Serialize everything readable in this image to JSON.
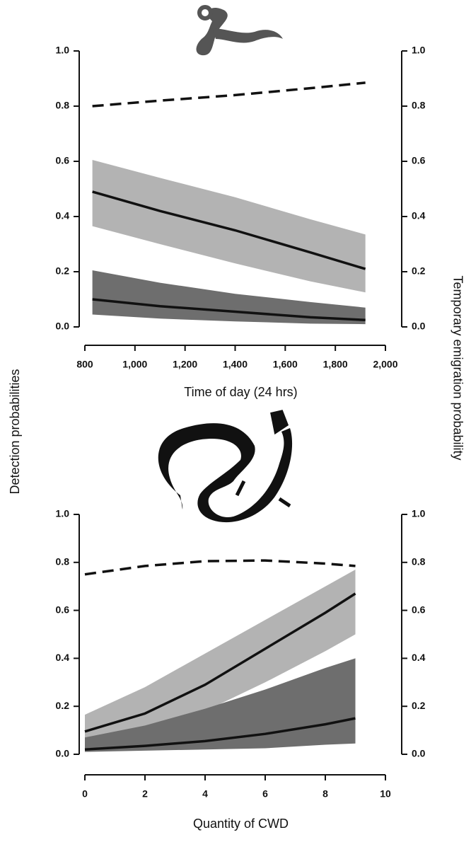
{
  "y_label": "Detection probabilities",
  "y2_label": "Temporary emigration probability",
  "chart_data": [
    {
      "type": "line",
      "x_label": "Time of day (24 hrs)",
      "x": [
        830,
        1100,
        1400,
        1700,
        1920
      ],
      "xlim": [
        800,
        2000
      ],
      "xticks": [
        800,
        {
          "value": 1000,
          "label": "1,000"
        },
        {
          "value": 1200,
          "label": "1,200"
        },
        {
          "value": 1400,
          "label": "1,400"
        },
        {
          "value": 1600,
          "label": "1,600"
        },
        {
          "value": 1800,
          "label": "1,800"
        },
        {
          "value": 2000,
          "label": "2,000"
        }
      ],
      "ylim": [
        0,
        1
      ],
      "yticks": [
        {
          "value": 0,
          "label": "0.0"
        },
        0.2,
        0.4,
        0.6,
        0.8,
        {
          "value": 1,
          "label": "1.0"
        }
      ],
      "y2lim": [
        0,
        1
      ],
      "y2ticks": [
        {
          "value": 0,
          "label": "0.0"
        },
        0.2,
        0.4,
        0.6,
        0.8,
        {
          "value": 1,
          "label": "1.0"
        }
      ],
      "bands": [
        {
          "color": "#b3b3b3",
          "lower": [
            0.365,
            0.3,
            0.23,
            0.165,
            0.125
          ],
          "upper": [
            0.605,
            0.54,
            0.47,
            0.39,
            0.335
          ]
        },
        {
          "color": "#6e6e6e",
          "lower": [
            0.045,
            0.03,
            0.02,
            0.012,
            0.01
          ],
          "upper": [
            0.205,
            0.16,
            0.12,
            0.09,
            0.07
          ]
        }
      ],
      "series": [
        {
          "color": "#111111",
          "values": [
            0.49,
            0.42,
            0.35,
            0.27,
            0.21
          ]
        },
        {
          "color": "#111111",
          "values": [
            0.1,
            0.075,
            0.055,
            0.035,
            0.025
          ]
        },
        {
          "color": "#111111",
          "dashed": true,
          "axis": "y2",
          "values": [
            0.8,
            0.82,
            0.84,
            0.865,
            0.885
          ]
        }
      ]
    },
    {
      "type": "line",
      "x_label": "Quantity of CWD",
      "x": [
        0,
        2,
        4,
        6,
        8,
        9
      ],
      "xlim": [
        0,
        10
      ],
      "xticks": [
        0,
        2,
        4,
        6,
        8,
        10
      ],
      "ylim": [
        0,
        1
      ],
      "yticks": [
        {
          "value": 0,
          "label": "0.0"
        },
        0.2,
        0.4,
        0.6,
        0.8,
        {
          "value": 1,
          "label": "1.0"
        }
      ],
      "y2lim": [
        0,
        1
      ],
      "y2ticks": [
        {
          "value": 0,
          "label": "0.0"
        },
        0.2,
        0.4,
        0.6,
        0.8,
        {
          "value": 1,
          "label": "1.0"
        }
      ],
      "bands": [
        {
          "color": "#b3b3b3",
          "lower": [
            0.06,
            0.1,
            0.18,
            0.3,
            0.43,
            0.5
          ],
          "upper": [
            0.165,
            0.28,
            0.42,
            0.56,
            0.7,
            0.77
          ]
        },
        {
          "color": "#6e6e6e",
          "lower": [
            0.01,
            0.015,
            0.02,
            0.025,
            0.04,
            0.045
          ],
          "upper": [
            0.07,
            0.12,
            0.19,
            0.27,
            0.36,
            0.4
          ]
        }
      ],
      "series": [
        {
          "color": "#111111",
          "values": [
            0.095,
            0.17,
            0.29,
            0.44,
            0.59,
            0.67
          ]
        },
        {
          "color": "#111111",
          "values": [
            0.02,
            0.035,
            0.055,
            0.085,
            0.125,
            0.15
          ]
        },
        {
          "color": "#111111",
          "dashed": true,
          "axis": "y2",
          "values": [
            0.75,
            0.785,
            0.805,
            0.808,
            0.795,
            0.785
          ]
        }
      ]
    }
  ]
}
